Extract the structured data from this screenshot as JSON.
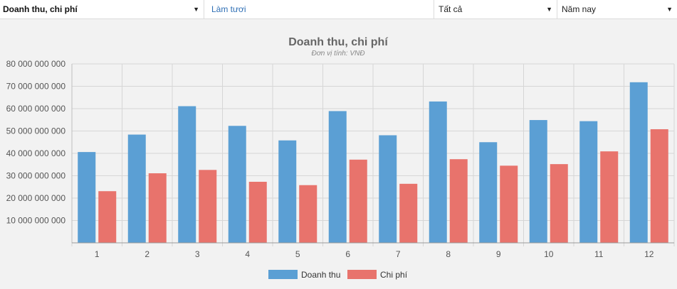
{
  "toolbar": {
    "report_select": "Doanh thu, chi phí",
    "refresh_link": "Làm tươi",
    "filter_select": "Tất cả",
    "period_select": "Năm nay"
  },
  "chart_data": {
    "type": "bar",
    "title": "Doanh thu, chi phí",
    "subtitle": "Đơn vị tính: VNĐ",
    "categories": [
      "1",
      "2",
      "3",
      "4",
      "5",
      "6",
      "7",
      "8",
      "9",
      "10",
      "11",
      "12"
    ],
    "series": [
      {
        "name": "Doanh thu",
        "color": "#5b9fd4",
        "values": [
          40600000000,
          48400000000,
          61100000000,
          52300000000,
          45800000000,
          58900000000,
          48100000000,
          63200000000,
          45000000000,
          54900000000,
          54400000000,
          71800000000
        ]
      },
      {
        "name": "Chi phí",
        "color": "#e8736c",
        "values": [
          23100000000,
          31100000000,
          32600000000,
          27300000000,
          25800000000,
          37200000000,
          26400000000,
          37400000000,
          34500000000,
          35200000000,
          40900000000,
          50800000000
        ]
      }
    ],
    "yticks": [
      "10 000 000 000",
      "20 000 000 000",
      "30 000 000 000",
      "40 000 000 000",
      "50 000 000 000",
      "60 000 000 000",
      "70 000 000 000",
      "80 000 000 000"
    ],
    "ylim": [
      0,
      80000000000
    ],
    "grid": true,
    "legend_position": "bottom-center"
  }
}
